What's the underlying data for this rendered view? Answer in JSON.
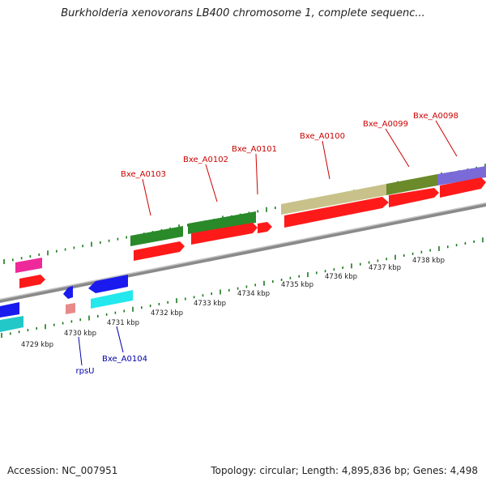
{
  "title": "Burkholderia xenovorans LB400 chromosome 1, complete sequenc...",
  "accession_text": "Accession: NC_007951",
  "stats_text": "Topology: circular; Length: 4,895,836 bp; Genes: 4,498",
  "tick_labels": [
    "4729 kbp",
    "4730 kbp",
    "4731 kbp",
    "4732 kbp",
    "4733 kbp",
    "4734 kbp",
    "4735 kbp",
    "4736 kbp",
    "4737 kbp",
    "4738 kbp"
  ],
  "gene_labels": {
    "top": [
      "Bxe_A0103",
      "Bxe_A0102",
      "Bxe_A0101",
      "Bxe_A0100",
      "Bxe_A0099",
      "Bxe_A0098"
    ],
    "bottom": [
      "rpsU",
      "Bxe_A0104"
    ]
  },
  "colors": {
    "forward_label": "#cc0000",
    "reverse_label": "#0000aa",
    "backbone": "#808080",
    "tick": "#1a7a1a",
    "cds_forward": "#ff1a1a",
    "cds_reverse_blue": "#1a1aee",
    "cds_reverse_cyan": "#22e8ee",
    "feature_green": "#2a8a2a",
    "feature_olive": "#6b8a2a",
    "feature_khaki": "#c8c28a",
    "feature_purple": "#7a6ad8",
    "feature_magenta": "#ee2a9a",
    "feature_teal": "#22c8c8",
    "feature_pink": "#e88a8a"
  }
}
